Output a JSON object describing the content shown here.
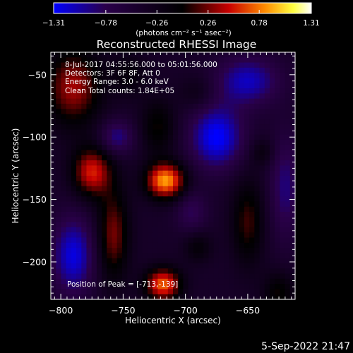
{
  "chart_data": {
    "type": "heatmap",
    "title": "Reconstructed RHESSI Image",
    "xlabel": "Heliocentric X (arcsec)",
    "ylabel": "Heliocentric Y (arcsec)",
    "xlim": [
      -808,
      -612
    ],
    "ylim": [
      -230,
      -32
    ],
    "xticks": [
      -800,
      -750,
      -700,
      -650
    ],
    "xtick_labels": [
      "−800",
      "−750",
      "−700",
      "−650"
    ],
    "yticks": [
      -50,
      -100,
      -150,
      -200
    ],
    "ytick_labels": [
      "−50",
      "−100",
      "−150",
      "−200"
    ],
    "colorbar": {
      "range": [
        -1.31,
        1.31
      ],
      "ticks": [
        -1.31,
        -0.78,
        -0.26,
        0.26,
        0.78,
        1.31
      ],
      "tick_labels": [
        "−1.31",
        "−0.78",
        "−0.26",
        "0.26",
        "0.78",
        "1.31"
      ],
      "unit_label": "(photons cm⁻² s⁻¹ asec⁻²)",
      "stops": [
        "#0000ff",
        "#2a004a",
        "#000000",
        "#c80000",
        "#ff8c00",
        "#ffff40",
        "#ffffff"
      ]
    },
    "annotations": {
      "time_range": "8-Jul-2017 04:55:56.000 to 05:01:56.000",
      "detectors": "Detectors: 3F 6F 8F, Att 0",
      "energy": "Energy Range: 3.0 - 6.0 keV",
      "clean": "Clean    Total counts: 1.84E+05",
      "peak": "Position of Peak = [-713,-139]"
    },
    "peak": [
      -713,
      -139
    ],
    "sources": [
      {
        "x": -716,
        "y": -135,
        "sx": 11,
        "sy": 10,
        "amp": 1.31
      },
      {
        "x": -718,
        "y": -218,
        "sx": 10,
        "sy": 9,
        "amp": 1.15
      },
      {
        "x": -775,
        "y": -128,
        "sx": 11,
        "sy": 14,
        "amp": 0.95
      },
      {
        "x": -790,
        "y": -60,
        "sx": 16,
        "sy": 22,
        "amp": 0.8
      },
      {
        "x": -758,
        "y": -178,
        "sx": 9,
        "sy": 26,
        "amp": 0.7
      },
      {
        "x": -722,
        "y": -92,
        "sx": 10,
        "sy": 16,
        "amp": 0.45
      },
      {
        "x": -745,
        "y": -50,
        "sx": 10,
        "sy": 12,
        "amp": 0.3
      },
      {
        "x": -650,
        "y": -168,
        "sx": 9,
        "sy": 24,
        "amp": 0.55
      },
      {
        "x": -625,
        "y": -225,
        "sx": 9,
        "sy": 12,
        "amp": 0.45
      },
      {
        "x": -690,
        "y": -65,
        "sx": 10,
        "sy": 10,
        "amp": 0.25
      },
      {
        "x": -638,
        "y": -112,
        "sx": 7,
        "sy": 8,
        "amp": 0.3
      },
      {
        "x": -690,
        "y": -188,
        "sx": 8,
        "sy": 9,
        "amp": 0.35
      },
      {
        "x": -675,
        "y": -100,
        "sx": 15,
        "sy": 18,
        "amp": -0.9
      },
      {
        "x": -650,
        "y": -55,
        "sx": 18,
        "sy": 14,
        "amp": -0.7
      },
      {
        "x": -755,
        "y": -100,
        "sx": 10,
        "sy": 10,
        "amp": -0.55
      },
      {
        "x": -790,
        "y": -195,
        "sx": 12,
        "sy": 22,
        "amp": -0.8
      },
      {
        "x": -695,
        "y": -160,
        "sx": 9,
        "sy": 12,
        "amp": -0.4
      },
      {
        "x": -620,
        "y": -140,
        "sx": 9,
        "sy": 30,
        "amp": -0.5
      }
    ]
  },
  "footer": {
    "datestamp": "5-Sep-2022 21:47"
  }
}
